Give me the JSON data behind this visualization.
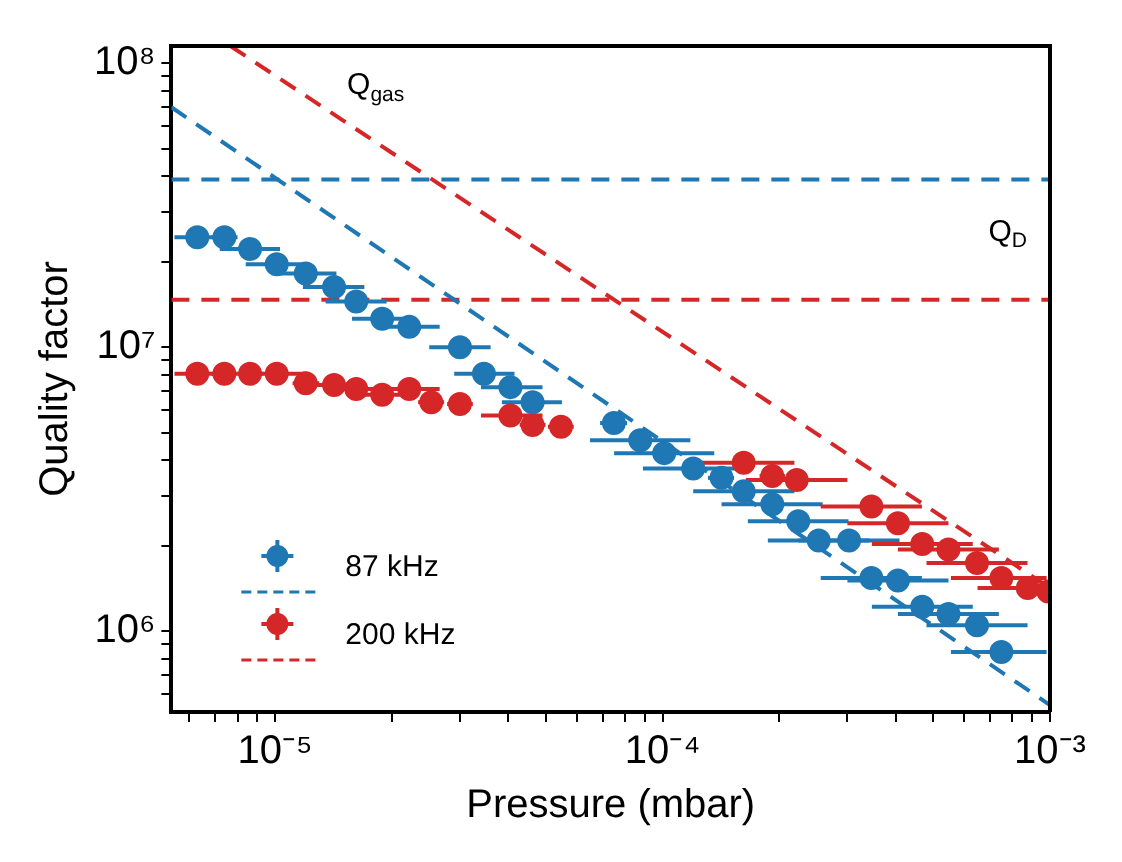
{
  "chart_data": {
    "type": "scatter",
    "xlabel": "Pressure (mbar)",
    "ylabel": "Quality factor",
    "log": "xy",
    "grid": false,
    "marker": "circle",
    "legend": "bottom left",
    "xlim": [
      5.4e-06,
      0.001
    ],
    "ylim": [
      520000.0,
      115000000.0
    ],
    "xticks": [
      {
        "value": 6e-06,
        "label": null
      },
      {
        "value": 7e-06,
        "label": null
      },
      {
        "value": 8e-06,
        "label": null
      },
      {
        "value": 9e-06,
        "label": null
      },
      {
        "value": 1e-05,
        "label": "10⁻⁵"
      },
      {
        "value": 2e-05,
        "label": null
      },
      {
        "value": 3e-05,
        "label": null
      },
      {
        "value": 4e-05,
        "label": null
      },
      {
        "value": 5e-05,
        "label": null
      },
      {
        "value": 6e-05,
        "label": null
      },
      {
        "value": 7e-05,
        "label": null
      },
      {
        "value": 8e-05,
        "label": null
      },
      {
        "value": 9e-05,
        "label": null
      },
      {
        "value": 0.0001,
        "label": "10⁻⁴"
      },
      {
        "value": 0.0002,
        "label": null
      },
      {
        "value": 0.0003,
        "label": null
      },
      {
        "value": 0.0004,
        "label": null
      },
      {
        "value": 0.0005,
        "label": null
      },
      {
        "value": 0.0006,
        "label": null
      },
      {
        "value": 0.0007,
        "label": null
      },
      {
        "value": 0.0008,
        "label": null
      },
      {
        "value": 0.0009,
        "label": null
      },
      {
        "value": 0.001,
        "label": "10⁻³"
      }
    ],
    "yticks": [
      {
        "value": 600000.0,
        "label": null
      },
      {
        "value": 700000.0,
        "label": null
      },
      {
        "value": 800000.0,
        "label": null
      },
      {
        "value": 900000.0,
        "label": null
      },
      {
        "value": 1000000.0,
        "label": "10⁶"
      },
      {
        "value": 2000000.0,
        "label": null
      },
      {
        "value": 3000000.0,
        "label": null
      },
      {
        "value": 4000000.0,
        "label": null
      },
      {
        "value": 5000000.0,
        "label": null
      },
      {
        "value": 6000000.0,
        "label": null
      },
      {
        "value": 7000000.0,
        "label": null
      },
      {
        "value": 8000000.0,
        "label": null
      },
      {
        "value": 9000000.0,
        "label": null
      },
      {
        "value": 10000000.0,
        "label": "10⁷"
      },
      {
        "value": 20000000.0,
        "label": null
      },
      {
        "value": 30000000.0,
        "label": null
      },
      {
        "value": 40000000.0,
        "label": null
      },
      {
        "value": 50000000.0,
        "label": null
      },
      {
        "value": 60000000.0,
        "label": null
      },
      {
        "value": 70000000.0,
        "label": null
      },
      {
        "value": 80000000.0,
        "label": null
      },
      {
        "value": 90000000.0,
        "label": null
      },
      {
        "value": 100000000.0,
        "label": "10⁸"
      }
    ],
    "series": [
      {
        "name": "87 kHz",
        "color": "#1f77b4",
        "x": [
          6.3e-06,
          7.4e-06,
          8.62e-06,
          1.01e-05,
          1.2e-05,
          1.42e-05,
          1.62e-05,
          1.89e-05,
          2.22e-05,
          3e-05,
          3.46e-05,
          4.05e-05,
          4.62e-05,
          7.49e-05,
          8.76e-05,
          0.000101,
          0.00012,
          0.000142,
          0.000162,
          0.000192,
          0.000224,
          0.000253,
          0.000303,
          0.000346,
          0.000405,
          0.000468,
          0.000547,
          0.000648,
          0.000749
        ],
        "values": [
          24400000.0,
          24400000.0,
          22200000.0,
          19600000.0,
          18200000.0,
          16300000.0,
          14500000.0,
          12600000.0,
          11800000.0,
          10000000.0,
          8070000.0,
          7240000.0,
          6410000.0,
          5410000.0,
          4710000.0,
          4240000.0,
          3740000.0,
          3470000.0,
          3110000.0,
          2800000.0,
          2440000.0,
          2090000.0,
          2090000.0,
          1540000.0,
          1510000.0,
          1220000.0,
          1150000.0,
          1050000.0,
          845000.0
        ],
        "xerrors": [
          [
            5.5e-06,
            7.6e-06
          ],
          [
            6.85e-06,
            8e-06
          ],
          [
            7.2e-06,
            1.03e-05
          ],
          [
            8.4e-06,
            1.21e-05
          ],
          [
            1e-05,
            1.44e-05
          ],
          [
            1.18e-05,
            1.7e-05
          ],
          [
            1.35e-05,
            1.94e-05
          ],
          [
            1.58e-05,
            2.27e-05
          ],
          [
            1.85e-05,
            2.66e-05
          ],
          [
            2.5e-05,
            3.6e-05
          ],
          [
            2.9e-05,
            4.15e-05
          ],
          [
            3.4e-05,
            4.9e-05
          ],
          [
            3.85e-05,
            5.5e-05
          ],
          [
            6.9e-05,
            8.1e-05
          ],
          [
            6.5e-05,
            0.000118
          ],
          [
            7.5e-05,
            0.000136
          ],
          [
            8.9e-05,
            0.000162
          ],
          [
            0.000131,
            0.000153
          ],
          [
            0.00012,
            0.000219
          ],
          [
            0.000142,
            0.000259
          ],
          [
            0.000166,
            0.000302
          ],
          [
            0.000187,
            0.000342
          ],
          [
            0.000224,
            0.000409
          ],
          [
            0.000256,
            0.000467
          ],
          [
            0.0003,
            0.000547
          ],
          [
            0.000347,
            0.000632
          ],
          [
            0.000405,
            0.000738
          ],
          [
            0.00048,
            0.000875
          ],
          [
            0.000555,
            0.00098
          ]
        ]
      },
      {
        "name": "200 kHz",
        "color": "#d62728",
        "x": [
          6.3e-06,
          7.4e-06,
          8.62e-06,
          1.01e-05,
          1.2e-05,
          1.42e-05,
          1.62e-05,
          1.89e-05,
          2.22e-05,
          2.53e-05,
          3e-05,
          4.05e-05,
          4.62e-05,
          5.47e-05,
          0.000162,
          0.000192,
          0.000222,
          0.000346,
          0.000405,
          0.000468,
          0.000547,
          0.000648,
          0.000749,
          0.000876,
          0.00099
        ],
        "values": [
          8070000.0,
          8070000.0,
          8070000.0,
          8070000.0,
          7470000.0,
          7360000.0,
          7130000.0,
          6810000.0,
          7130000.0,
          6410000.0,
          6310000.0,
          5750000.0,
          5330000.0,
          5250000.0,
          3920000.0,
          3520000.0,
          3410000.0,
          2750000.0,
          2400000.0,
          2030000.0,
          1940000.0,
          1740000.0,
          1540000.0,
          1420000.0,
          1380000.0
        ],
        "xerrors": [
          [
            5.5e-06,
            7.6e-06
          ],
          [
            6.85e-06,
            8e-06
          ],
          [
            7.98e-06,
            9.3e-06
          ],
          [
            8.4e-06,
            1.21e-05
          ],
          [
            1.11e-05,
            1.3e-05
          ],
          [
            1.18e-05,
            1.7e-05
          ],
          [
            1.35e-05,
            1.94e-05
          ],
          [
            1.58e-05,
            2.27e-05
          ],
          [
            1.85e-05,
            2.66e-05
          ],
          [
            2.34e-05,
            2.73e-05
          ],
          [
            2.78e-05,
            3.24e-05
          ],
          [
            3.4e-05,
            4.9e-05
          ],
          [
            4.28e-05,
            4.99e-05
          ],
          [
            5.06e-05,
            5.9e-05
          ],
          [
            0.00012,
            0.000219
          ],
          [
            0.000178,
            0.000207
          ],
          [
            0.000164,
            0.0003
          ],
          [
            0.000256,
            0.000467
          ],
          [
            0.0003,
            0.000547
          ],
          [
            0.000347,
            0.000632
          ],
          [
            0.000405,
            0.000738
          ],
          [
            0.00048,
            0.000875
          ],
          [
            0.000555,
            0.00098
          ],
          [
            0.00065,
            0.001
          ],
          [
            0.00085,
            0.001
          ]
        ]
      },
      {
        "type": "line",
        "line_style": "dashed",
        "marker": "none",
        "color": "#1f77b4",
        "x": [
          5.4e-06,
          0.001
        ],
        "values": [
          70000000.0,
          550000.0
        ]
      },
      {
        "type": "line",
        "line_style": "dashed",
        "marker": "none",
        "color": "#d62728",
        "x": [
          7.67e-06,
          0.001
        ],
        "values": [
          115000000.0,
          1420000.0
        ]
      }
    ],
    "ref_lines": [
      {
        "axis": "y",
        "value": 39000000.0,
        "color": "#1f77b4",
        "line_style": "dashed"
      },
      {
        "axis": "y",
        "value": 14700000.0,
        "color": "#d62728",
        "line_style": "dashed"
      }
    ],
    "annotations": [
      "Q$_{gas}$",
      "Q$_{D}$"
    ]
  }
}
